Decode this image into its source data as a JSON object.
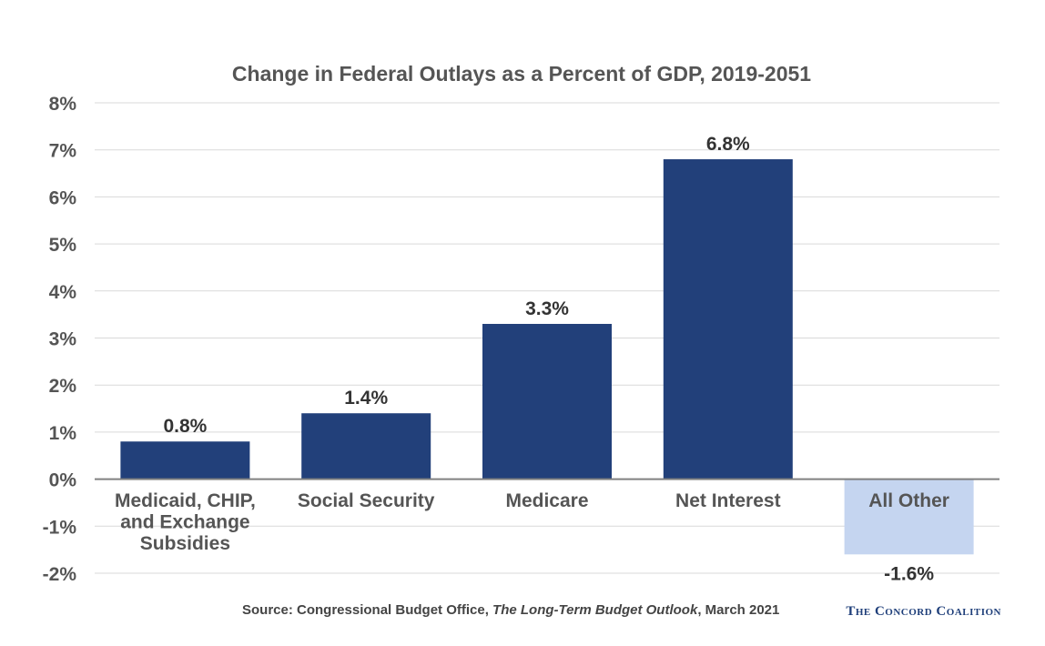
{
  "chart_data": {
    "type": "bar",
    "title": "Change in Federal Outlays as a Percent of GDP, 2019-2051",
    "xlabel": "",
    "ylabel": "",
    "ylim": [
      -2,
      8
    ],
    "yticks": [
      "8%",
      "7%",
      "6%",
      "5%",
      "4%",
      "3%",
      "2%",
      "1%",
      "0%",
      "-1%",
      "-2%"
    ],
    "ytick_values": [
      8,
      7,
      6,
      5,
      4,
      3,
      2,
      1,
      0,
      -1,
      -2
    ],
    "grid": true,
    "categories": [
      [
        "Medicaid, CHIP,",
        "and Exchange",
        "Subsidies"
      ],
      [
        "Social Security"
      ],
      [
        "Medicare"
      ],
      [
        "Net Interest"
      ],
      [
        "All Other"
      ]
    ],
    "values": [
      0.8,
      1.4,
      3.3,
      6.8,
      -1.6
    ],
    "value_labels": [
      "0.8%",
      "1.4%",
      "3.3%",
      "6.8%",
      "-1.6%"
    ],
    "colors": {
      "positive": "#22407a",
      "negative": "#c5d5f0"
    }
  },
  "footer": {
    "source_prefix": "Source: Congressional Budget Office, ",
    "source_title": "The Long-Term Budget Outlook",
    "source_suffix": ", March 2021",
    "logo_text": "The Concord Coalition"
  }
}
